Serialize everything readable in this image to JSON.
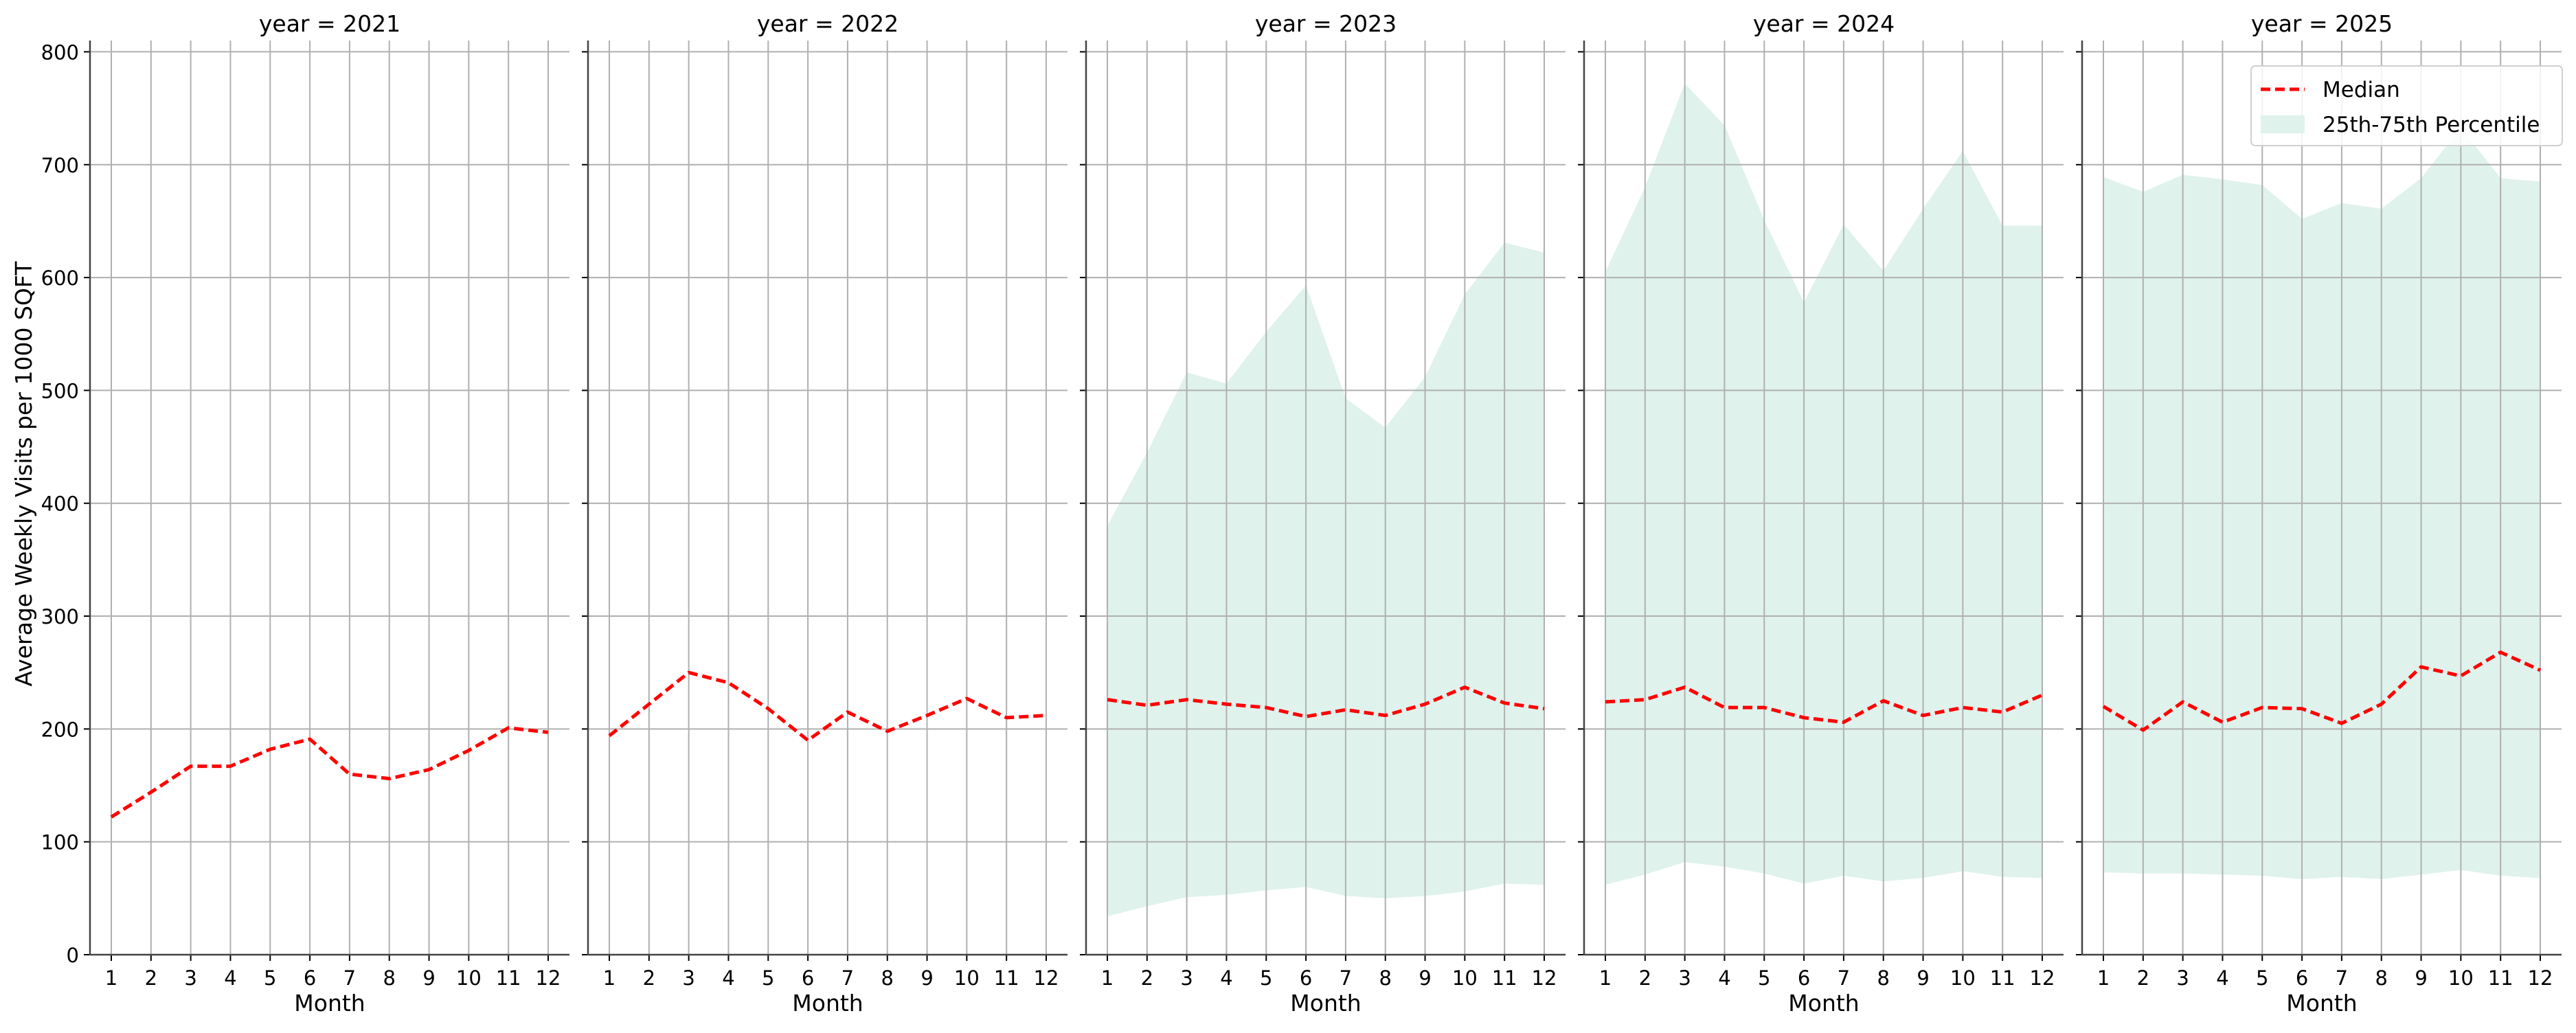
{
  "chart_data": {
    "type": "line",
    "facet_variable": "year",
    "panels": [
      {
        "title": "year = 2021",
        "year": 2021
      },
      {
        "title": "year = 2022",
        "year": 2022
      },
      {
        "title": "year = 2023",
        "year": 2023
      },
      {
        "title": "year = 2024",
        "year": 2024
      },
      {
        "title": "year = 2025",
        "year": 2025
      }
    ],
    "x": [
      1,
      2,
      3,
      4,
      5,
      6,
      7,
      8,
      9,
      10,
      11,
      12
    ],
    "xlabel": "Month",
    "ylabel": "Average Weekly Visits per 1000 SQFT",
    "ylim": [
      0,
      810
    ],
    "yticks": [
      0,
      100,
      200,
      300,
      400,
      500,
      600,
      700,
      800
    ],
    "grid": true,
    "sharey": true,
    "legend": {
      "placement": "top-right",
      "panel": 2025,
      "entries": [
        "Median",
        "25th-75th Percentile"
      ]
    },
    "colors": {
      "median": "#ff0000",
      "band": "#dff2ec",
      "grid": "#b0b0b0"
    },
    "series": [
      {
        "name": "Median",
        "style": "dashed",
        "values": {
          "2021": [
            122,
            144,
            167,
            167,
            182,
            191,
            160,
            156,
            164,
            181,
            201,
            197
          ],
          "2022": [
            194,
            222,
            250,
            241,
            218,
            190,
            215,
            198,
            212,
            227,
            210,
            212
          ],
          "2023": [
            226,
            221,
            226,
            222,
            219,
            211,
            217,
            212,
            222,
            237,
            223,
            218
          ],
          "2024": [
            224,
            226,
            237,
            219,
            219,
            210,
            206,
            225,
            212,
            219,
            215,
            230
          ],
          "2025": [
            220,
            199,
            224,
            206,
            219,
            218,
            205,
            222,
            255,
            247,
            268,
            252
          ]
        }
      },
      {
        "name": "25th-75th Percentile",
        "type": "area_band",
        "lower": {
          "2023": [
            34,
            43,
            51,
            53,
            57,
            60,
            52,
            50,
            52,
            56,
            63,
            62
          ],
          "2024": [
            62,
            71,
            82,
            78,
            72,
            63,
            70,
            65,
            68,
            74,
            69,
            68
          ],
          "2025": [
            73,
            72,
            72,
            71,
            70,
            67,
            69,
            67,
            71,
            75,
            70,
            68
          ]
        },
        "upper": {
          "2023": [
            380,
            445,
            516,
            506,
            552,
            593,
            493,
            467,
            512,
            585,
            631,
            622
          ],
          "2024": [
            605,
            680,
            772,
            735,
            651,
            578,
            647,
            606,
            661,
            712,
            646,
            646
          ],
          "2025": [
            689,
            676,
            691,
            687,
            682,
            652,
            666,
            661,
            688,
            733,
            688,
            685
          ]
        }
      }
    ]
  }
}
